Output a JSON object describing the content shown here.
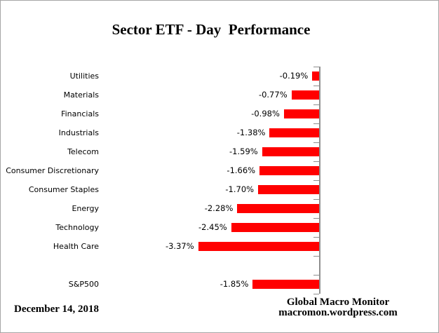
{
  "title": "Sector ETF - Day  Performance",
  "footer": {
    "date": "December 14, 2018",
    "source_line1": "Global Macro Monitor",
    "source_line2": "macromon.wordpress.com"
  },
  "colors": {
    "bar": "#FF0000",
    "axis": "#8E8E8E",
    "border": "#A6A6A6",
    "text": "#000000"
  },
  "chart_data": {
    "type": "bar",
    "orientation": "horizontal",
    "title": "Sector ETF - Day  Performance",
    "categories": [
      "Utilities",
      "Materials",
      "Financials",
      "Industrials",
      "Telecom",
      "Consumer Discretionary",
      "Consumer Staples",
      "Energy",
      "Technology",
      "Health Care",
      "",
      "S&P500"
    ],
    "values": [
      -0.19,
      -0.77,
      -0.98,
      -1.38,
      -1.59,
      -1.66,
      -1.7,
      -2.28,
      -2.45,
      -3.37,
      null,
      -1.85
    ],
    "value_labels": [
      "-0.19%",
      "-0.77%",
      "-0.98%",
      "-1.38%",
      "-1.59%",
      "-1.66%",
      "-1.70%",
      "-2.28%",
      "-2.45%",
      "-3.37%",
      "",
      "-1.85%"
    ],
    "xlabel": "",
    "ylabel": "",
    "xlim": [
      -3.5,
      0
    ],
    "axis_side": "right",
    "grid": false,
    "legend": false,
    "bar_color": "#FF0000"
  }
}
